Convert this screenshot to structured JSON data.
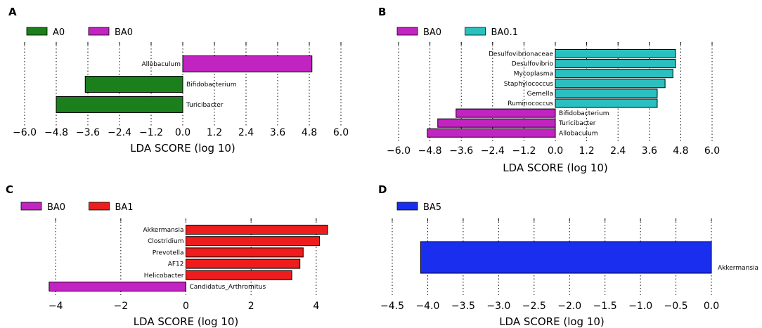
{
  "chart_data": [
    {
      "panel": "A",
      "type": "bar",
      "orientation": "horizontal",
      "xlabel": "LDA SCORE (log 10)",
      "xlim": [
        -6.0,
        6.0
      ],
      "ticks": [
        -6.0,
        -4.8,
        -3.6,
        -2.4,
        -1.2,
        0.0,
        1.2,
        2.4,
        3.6,
        4.8,
        6.0
      ],
      "tick_labels": [
        "−6.0",
        "−4.8",
        "−3.6",
        "−2.4",
        "−1.2",
        "0.0",
        "1.2",
        "2.4",
        "3.6",
        "4.8",
        "6.0"
      ],
      "legend": [
        {
          "name": "A0",
          "color": "#1b7f1b"
        },
        {
          "name": "BA0",
          "color": "#c224c2"
        }
      ],
      "bars": [
        {
          "label": "Allobaculum",
          "value": 4.9,
          "group": "BA0"
        },
        {
          "label": "Bifidobacterium",
          "value": -3.7,
          "group": "A0"
        },
        {
          "label": "Turicibacter",
          "value": -4.8,
          "group": "A0"
        }
      ]
    },
    {
      "panel": "B",
      "type": "bar",
      "orientation": "horizontal",
      "xlabel": "LDA SCORE (log 10)",
      "xlim": [
        -6.0,
        6.0
      ],
      "ticks": [
        -6.0,
        -4.8,
        -3.6,
        -2.4,
        -1.2,
        0.0,
        1.2,
        2.4,
        3.6,
        4.8,
        6.0
      ],
      "tick_labels": [
        "−6.0",
        "−4.8",
        "−3.6",
        "−2.4",
        "−1.2",
        "0.0",
        "1.2",
        "2.4",
        "3.6",
        "4.8",
        "6.0"
      ],
      "legend": [
        {
          "name": "BA0",
          "color": "#c224c2"
        },
        {
          "name": "BA0.1",
          "color": "#2bc0c0"
        }
      ],
      "bars": [
        {
          "label": "Desulfovibrionaceae",
          "value": 4.6,
          "group": "BA0.1"
        },
        {
          "label": "Desulfovibrio",
          "value": 4.6,
          "group": "BA0.1"
        },
        {
          "label": "Mycoplasma",
          "value": 4.5,
          "group": "BA0.1"
        },
        {
          "label": "Staphylococcus",
          "value": 4.2,
          "group": "BA0.1"
        },
        {
          "label": "Gemella",
          "value": 3.9,
          "group": "BA0.1"
        },
        {
          "label": "Ruminococcus",
          "value": 3.9,
          "group": "BA0.1"
        },
        {
          "label": "Bifidobacterium",
          "value": -3.8,
          "group": "BA0"
        },
        {
          "label": "Turicibacter",
          "value": -4.5,
          "group": "BA0"
        },
        {
          "label": "Allobaculum",
          "value": -4.9,
          "group": "BA0"
        }
      ]
    },
    {
      "panel": "C",
      "type": "bar",
      "orientation": "horizontal",
      "xlabel": "LDA SCORE (log 10)",
      "xlim": [
        -4.5,
        4.5
      ],
      "ticks": [
        -4,
        -2,
        0,
        2,
        4
      ],
      "tick_labels": [
        "−4",
        "−2",
        "0",
        "2",
        "4"
      ],
      "legend": [
        {
          "name": "BA0",
          "color": "#c224c2"
        },
        {
          "name": "BA1",
          "color": "#ee1c1c"
        }
      ],
      "bars": [
        {
          "label": "Akkermansia",
          "value": 4.35,
          "group": "BA1"
        },
        {
          "label": "Clostridium",
          "value": 4.1,
          "group": "BA1"
        },
        {
          "label": "Prevotella",
          "value": 3.6,
          "group": "BA1"
        },
        {
          "label": "AF12",
          "value": 3.5,
          "group": "BA1"
        },
        {
          "label": "Helicobacter",
          "value": 3.25,
          "group": "BA1"
        },
        {
          "label": "Candidatus_Arthromitus",
          "value": -4.2,
          "group": "BA0"
        }
      ]
    },
    {
      "panel": "D",
      "type": "bar",
      "orientation": "horizontal",
      "xlabel": "LDA SCORE (log 10)",
      "xlim": [
        -4.5,
        0.0
      ],
      "ticks": [
        -4.5,
        -4.0,
        -3.5,
        -3.0,
        -2.5,
        -2.0,
        -1.5,
        -1.0,
        -0.5,
        0.0
      ],
      "tick_labels": [
        "−4.5",
        "−4.0",
        "−3.5",
        "−3.0",
        "−2.5",
        "−2.0",
        "−1.5",
        "−1.0",
        "−0.5",
        "0.0"
      ],
      "legend": [
        {
          "name": "BA5",
          "color": "#1a2ef0"
        }
      ],
      "bars": [
        {
          "label": "Akkermansia",
          "value": -4.1,
          "group": "BA5"
        }
      ]
    }
  ]
}
